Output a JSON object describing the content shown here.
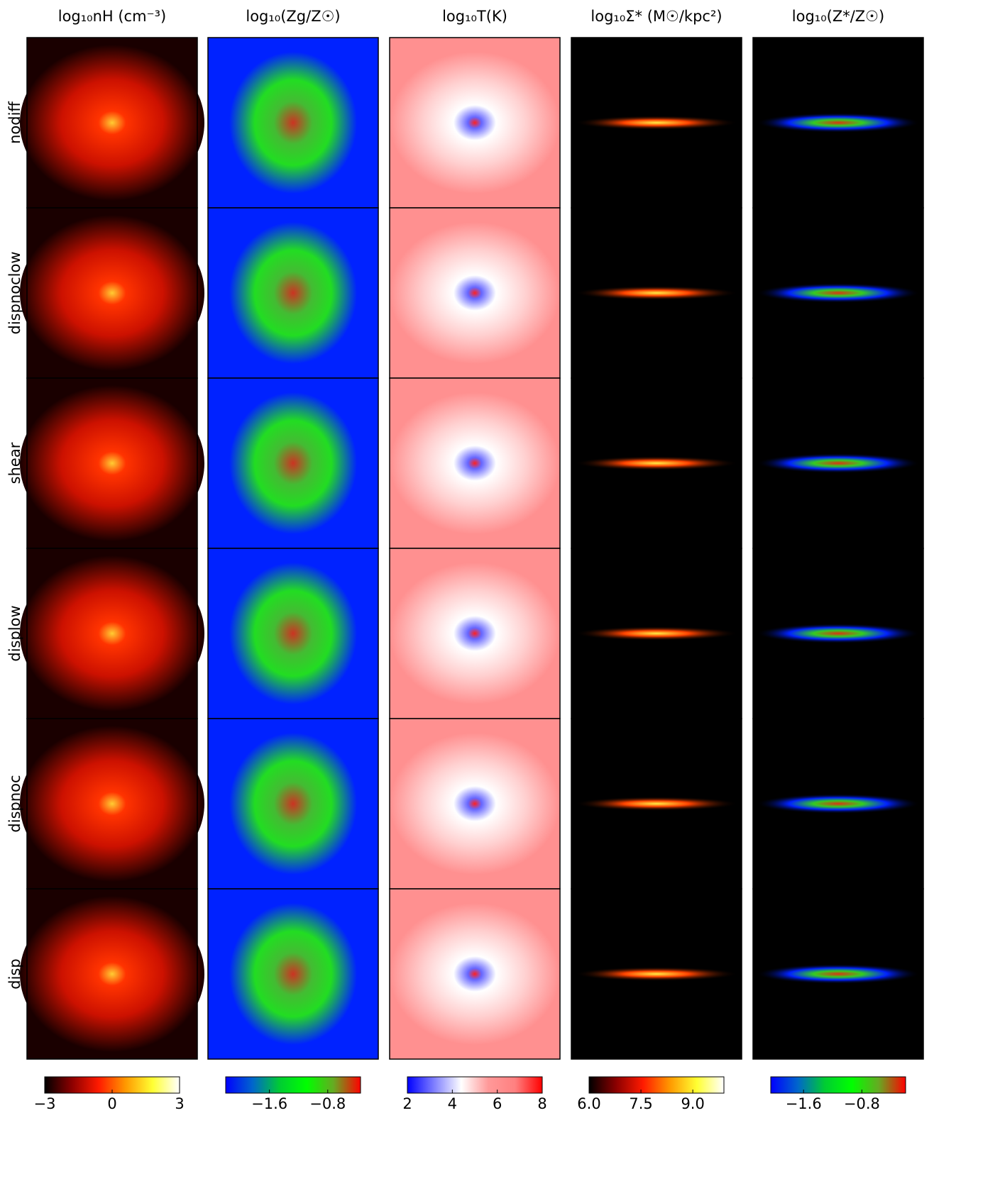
{
  "columns": [
    {
      "title": "log₁₀nH (cm⁻³)",
      "colorbar": {
        "lim": [
          -3,
          3
        ],
        "ticks": [
          {
            "value": -3,
            "label": "−3"
          },
          0,
          3
        ],
        "colors": [
          "#000000",
          "#8b0000",
          "#ff1a00",
          "#ff9900",
          "#ffff33",
          "#ffffff"
        ]
      }
    },
    {
      "title": "log₁₀(Zg/Z☉)",
      "colorbar": {
        "lim": [
          -2.2,
          -0.35
        ],
        "ticks": [
          {
            "value": -1.6,
            "label": "−1.6"
          },
          {
            "value": -0.8,
            "label": "−0.8"
          }
        ],
        "colors": [
          "#0000ff",
          "#0066cc",
          "#00cc33",
          "#00ff00",
          "#66aa22",
          "#ff0000"
        ]
      }
    },
    {
      "title": "log₁₀T(K)",
      "colorbar": {
        "lim": [
          2,
          8
        ],
        "ticks": [
          2,
          4,
          6,
          8
        ],
        "colors": [
          "#0000ff",
          "#8080ff",
          "#ffffff",
          "#ff9999",
          "#ff8080",
          "#ff0000"
        ]
      }
    },
    {
      "title": "log₁₀Σ* (M☉/kpc²)",
      "colorbar": {
        "lim": [
          6,
          9.9
        ],
        "ticks": [
          {
            "value": 6,
            "label": "6.0"
          },
          {
            "value": 7.5,
            "label": "7.5"
          },
          {
            "value": 9,
            "label": "9.0"
          }
        ],
        "colors": [
          "#000000",
          "#8b0000",
          "#ff1a00",
          "#ff9900",
          "#ffff33",
          "#ffffff"
        ]
      }
    },
    {
      "title": "log₁₀(Z*/Z☉)",
      "colorbar": {
        "lim": [
          -2.05,
          -0.2
        ],
        "ticks": [
          {
            "value": -1.6,
            "label": "−1.6"
          },
          {
            "value": -0.8,
            "label": "−0.8"
          }
        ],
        "colors": [
          "#0000ff",
          "#0066cc",
          "#00cc33",
          "#00ff00",
          "#66aa22",
          "#ff0000"
        ]
      }
    }
  ],
  "rows": [
    "nodiff",
    "dispnoclow",
    "shear",
    "displow",
    "dispnoc",
    "disp"
  ]
}
